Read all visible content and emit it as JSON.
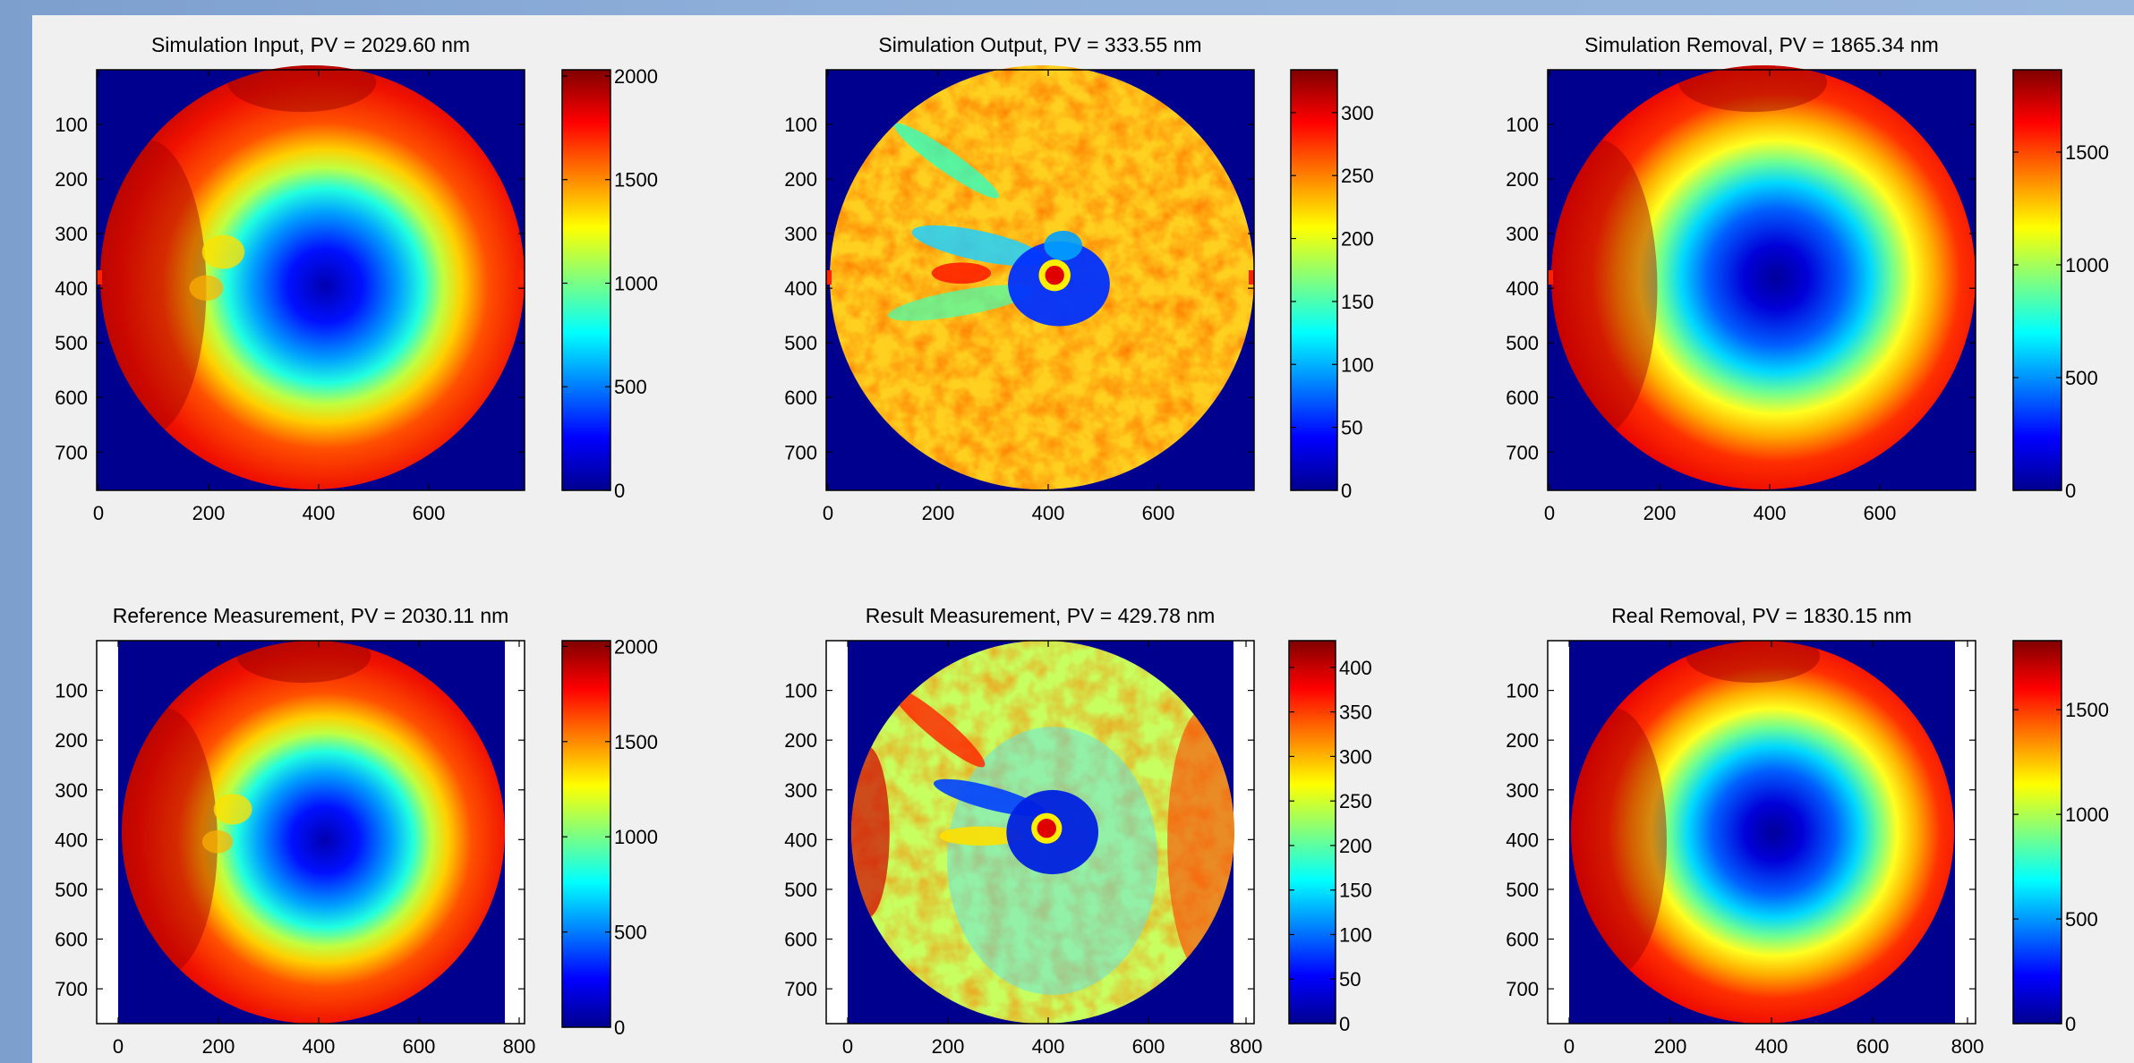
{
  "window": {
    "background": "#f0f0f0",
    "desktop_color": "#8aaad6"
  },
  "chart_data": [
    {
      "type": "heatmap",
      "title": "Simulation Input, PV = 2029.60 nm",
      "x_ticks": [
        "0",
        "200",
        "400",
        "600"
      ],
      "y_ticks": [
        "100",
        "200",
        "300",
        "400",
        "500",
        "600",
        "700"
      ],
      "xlim": [
        0,
        770
      ],
      "ylim": [
        0,
        770
      ],
      "colorbar": {
        "ticks": [
          0,
          500,
          1000,
          1500,
          2000
        ],
        "tick_labels": [
          "0",
          "500",
          "1000",
          "1500",
          "2000"
        ],
        "range": [
          0,
          2030
        ]
      },
      "colormap": "jet",
      "pattern": "bowl"
    },
    {
      "type": "heatmap",
      "title": "Simulation Output, PV = 333.55 nm",
      "x_ticks": [
        "0",
        "200",
        "400",
        "600"
      ],
      "y_ticks": [
        "100",
        "200",
        "300",
        "400",
        "500",
        "600",
        "700"
      ],
      "xlim": [
        0,
        770
      ],
      "ylim": [
        0,
        770
      ],
      "colorbar": {
        "ticks": [
          0,
          50,
          100,
          150,
          200,
          250,
          300
        ],
        "tick_labels": [
          "0",
          "50",
          "100",
          "150",
          "200",
          "250",
          "300"
        ],
        "range": [
          0,
          334
        ]
      },
      "colormap": "jet",
      "pattern": "residual"
    },
    {
      "type": "heatmap",
      "title": "Simulation Removal, PV = 1865.34 nm",
      "x_ticks": [
        "0",
        "200",
        "400",
        "600"
      ],
      "y_ticks": [
        "100",
        "200",
        "300",
        "400",
        "500",
        "600",
        "700"
      ],
      "xlim": [
        0,
        770
      ],
      "ylim": [
        0,
        770
      ],
      "colorbar": {
        "ticks": [
          0,
          500,
          1000,
          1500
        ],
        "tick_labels": [
          "0",
          "500",
          "1000",
          "1500"
        ],
        "range": [
          0,
          1865
        ]
      },
      "colormap": "jet",
      "pattern": "bowl-smooth"
    },
    {
      "type": "heatmap",
      "title": "Reference Measurement, PV = 2030.11 nm",
      "x_ticks": [
        "0",
        "200",
        "400",
        "600",
        "800"
      ],
      "y_ticks": [
        "100",
        "200",
        "300",
        "400",
        "500",
        "600",
        "700"
      ],
      "xlim": [
        -40,
        810
      ],
      "ylim": [
        0,
        770
      ],
      "colorbar": {
        "ticks": [
          0,
          500,
          1000,
          1500,
          2000
        ],
        "tick_labels": [
          "0",
          "500",
          "1000",
          "1500",
          "2000"
        ],
        "range": [
          0,
          2030
        ]
      },
      "colormap": "jet",
      "pattern": "bowl"
    },
    {
      "type": "heatmap",
      "title": "Result Measurement, PV = 429.78 nm",
      "x_ticks": [
        "0",
        "200",
        "400",
        "600",
        "800"
      ],
      "y_ticks": [
        "100",
        "200",
        "300",
        "400",
        "500",
        "600",
        "700"
      ],
      "xlim": [
        -40,
        810
      ],
      "ylim": [
        0,
        770
      ],
      "colorbar": {
        "ticks": [
          0,
          50,
          100,
          150,
          200,
          250,
          300,
          350,
          400
        ],
        "tick_labels": [
          "0",
          "50",
          "100",
          "150",
          "200",
          "250",
          "300",
          "350",
          "400"
        ],
        "range": [
          0,
          430
        ]
      },
      "colormap": "jet",
      "pattern": "result"
    },
    {
      "type": "heatmap",
      "title": "Real Removal, PV = 1830.15 nm",
      "x_ticks": [
        "0",
        "200",
        "400",
        "600",
        "800"
      ],
      "y_ticks": [
        "100",
        "200",
        "300",
        "400",
        "500",
        "600",
        "700"
      ],
      "xlim": [
        -40,
        810
      ],
      "ylim": [
        0,
        770
      ],
      "colorbar": {
        "ticks": [
          0,
          500,
          1000,
          1500
        ],
        "tick_labels": [
          "0",
          "500",
          "1000",
          "1500"
        ],
        "range": [
          0,
          1830
        ]
      },
      "colormap": "jet",
      "pattern": "bowl-smooth"
    }
  ]
}
